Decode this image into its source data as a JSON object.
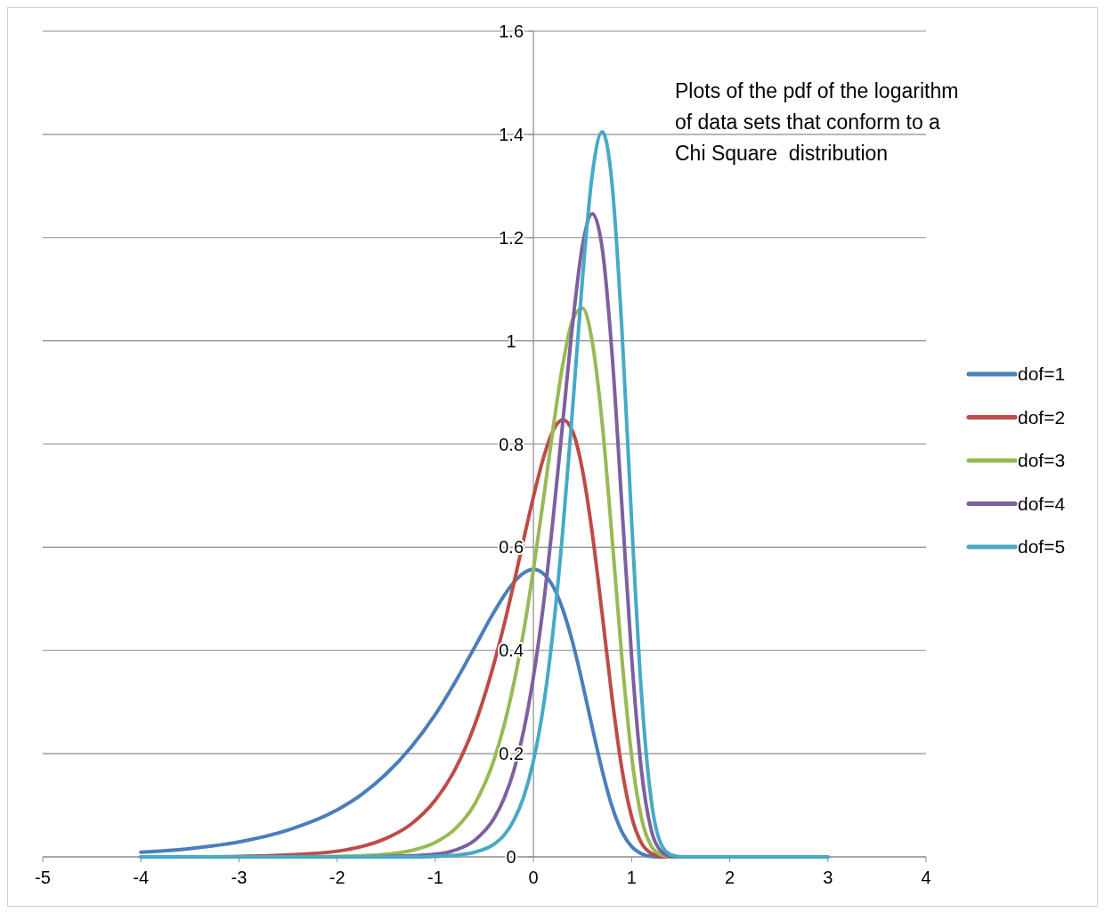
{
  "chart_data": {
    "type": "line",
    "x": [
      -4,
      -3.5,
      -3,
      -2.5,
      -2,
      -1.75,
      -1.5,
      -1.25,
      -1,
      -0.8,
      -0.6,
      -0.4,
      -0.3,
      -0.2,
      -0.1,
      0,
      0.1,
      0.2,
      0.3,
      0.4,
      0.5,
      0.6,
      0.7,
      0.8,
      0.9,
      1,
      1.1,
      1.2,
      1.3,
      1.4,
      1.5,
      2,
      3
    ],
    "series": [
      {
        "name": "dof=1",
        "color": "#4a7ebb",
        "values": [
          0.009,
          0.016,
          0.029,
          0.052,
          0.091,
          0.121,
          0.161,
          0.212,
          0.276,
          0.338,
          0.406,
          0.475,
          0.506,
          0.532,
          0.55,
          0.557,
          0.549,
          0.524,
          0.479,
          0.415,
          0.336,
          0.25,
          0.168,
          0.098,
          0.049,
          0.02,
          0.006,
          0.001,
          0,
          0,
          0,
          0,
          0
        ]
      },
      {
        "name": "dof=2",
        "color": "#be4b48",
        "values": [
          0,
          0,
          0.001,
          0.004,
          0.011,
          0.02,
          0.036,
          0.063,
          0.11,
          0.169,
          0.255,
          0.376,
          0.449,
          0.53,
          0.615,
          0.698,
          0.772,
          0.826,
          0.847,
          0.824,
          0.749,
          0.626,
          0.471,
          0.31,
          0.172,
          0.078,
          0.027,
          0.007,
          0.001,
          0,
          0,
          null,
          null
        ]
      },
      {
        "name": "dof=3",
        "color": "#98b954",
        "values": [
          null,
          null,
          null,
          0,
          0.001,
          0.002,
          0.005,
          0.012,
          0.028,
          0.054,
          0.102,
          0.189,
          0.254,
          0.336,
          0.437,
          0.557,
          0.691,
          0.83,
          0.955,
          1.041,
          1.063,
          0.997,
          0.841,
          0.621,
          0.388,
          0.196,
          0.076,
          0.021,
          0.004,
          0,
          0,
          null,
          null
        ]
      },
      {
        "name": "dof=4",
        "color": "#7d60a0",
        "values": [
          null,
          null,
          null,
          null,
          null,
          0,
          0.001,
          0.002,
          0.005,
          0.013,
          0.032,
          0.075,
          0.113,
          0.167,
          0.244,
          0.349,
          0.486,
          0.655,
          0.845,
          1.034,
          1.185,
          1.246,
          1.18,
          0.977,
          0.684,
          0.388,
          0.168,
          0.052,
          0.011,
          0.001,
          0,
          null,
          null
        ]
      },
      {
        "name": "dof=5",
        "color": "#46aac5",
        "values": [
          0,
          0,
          0,
          0,
          0,
          0,
          0,
          0,
          0.001,
          0.003,
          0.009,
          0.025,
          0.042,
          0.071,
          0.116,
          0.186,
          0.29,
          0.438,
          0.635,
          0.872,
          1.121,
          1.323,
          1.405,
          1.306,
          1.026,
          0.652,
          0.318,
          0.11,
          0.025,
          0.004,
          0,
          0,
          0
        ]
      }
    ],
    "xlim": [
      -5,
      4
    ],
    "xticks": [
      -5,
      -4,
      -3,
      -2,
      -1,
      0,
      1,
      2,
      3,
      4
    ],
    "ylim": [
      0,
      1.6
    ],
    "yticks": [
      0,
      0.2,
      0.4,
      0.6,
      0.8,
      1,
      1.2,
      1.4,
      1.6
    ],
    "grid": "y",
    "legend": "right",
    "marker": "none",
    "line_style": "solid",
    "annotations": [
      "Plots of the pdf of the logarithm\nof data sets that conform to a\nChi Square  distribution"
    ]
  }
}
